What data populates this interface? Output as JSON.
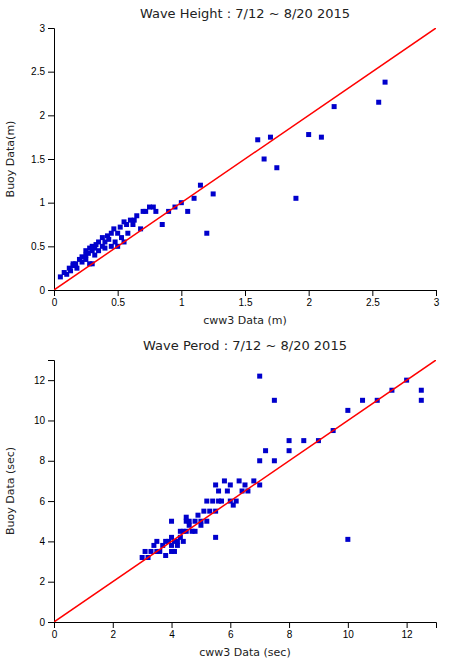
{
  "chart_data": [
    {
      "type": "scatter",
      "title": "Wave Height : 7/12 ~ 8/20 2015",
      "x_label": "cww3 Data (m)",
      "y_label": "Buoy Data(m)",
      "xlim": [
        0,
        3
      ],
      "ylim": [
        0,
        3
      ],
      "xticks": [
        0,
        0.5,
        1,
        1.5,
        2,
        2.5,
        3
      ],
      "yticks": [
        0,
        0.5,
        1,
        1.5,
        2,
        2.5,
        3
      ],
      "grid": false,
      "series": [
        {
          "type": "scatter",
          "color": "#0000CC",
          "marker": "square",
          "x": [
            0.05,
            0.08,
            0.1,
            0.12,
            0.13,
            0.15,
            0.15,
            0.17,
            0.18,
            0.2,
            0.22,
            0.22,
            0.25,
            0.25,
            0.25,
            0.27,
            0.28,
            0.28,
            0.3,
            0.3,
            0.3,
            0.32,
            0.32,
            0.33,
            0.35,
            0.35,
            0.38,
            0.38,
            0.4,
            0.4,
            0.42,
            0.43,
            0.45,
            0.45,
            0.47,
            0.48,
            0.5,
            0.5,
            0.52,
            0.53,
            0.55,
            0.55,
            0.57,
            0.58,
            0.6,
            0.62,
            0.63,
            0.65,
            0.68,
            0.7,
            0.72,
            0.75,
            0.78,
            0.8,
            0.85,
            0.9,
            0.95,
            1.0,
            1.05,
            1.1,
            1.15,
            1.2,
            1.25,
            1.6,
            1.65,
            1.7,
            1.75,
            1.9,
            2.0,
            2.1,
            2.2,
            2.55,
            2.6
          ],
          "values": [
            0.15,
            0.2,
            0.18,
            0.25,
            0.22,
            0.28,
            0.3,
            0.3,
            0.25,
            0.35,
            0.38,
            0.32,
            0.4,
            0.45,
            0.35,
            0.42,
            0.48,
            0.3,
            0.45,
            0.5,
            0.3,
            0.48,
            0.4,
            0.52,
            0.45,
            0.55,
            0.5,
            0.6,
            0.55,
            0.48,
            0.62,
            0.58,
            0.65,
            0.5,
            0.7,
            0.55,
            0.65,
            0.5,
            0.72,
            0.6,
            0.78,
            0.55,
            0.75,
            0.65,
            0.8,
            0.75,
            0.8,
            0.85,
            0.7,
            0.9,
            0.9,
            0.95,
            0.95,
            0.9,
            0.75,
            0.9,
            0.95,
            1.0,
            0.9,
            1.05,
            1.2,
            0.65,
            1.1,
            1.72,
            1.5,
            1.75,
            1.4,
            1.05,
            1.78,
            1.75,
            2.1,
            2.15,
            2.38
          ]
        },
        {
          "type": "line",
          "color": "#FF0000",
          "line_style": "solid",
          "x": [
            0,
            3
          ],
          "values": [
            0,
            3
          ]
        }
      ]
    },
    {
      "type": "scatter",
      "title": "Wave Perod : 7/12 ~ 8/20 2015",
      "x_label": "cww3 Data (sec)",
      "y_label": "Buoy Data (sec)",
      "xlim": [
        0,
        13
      ],
      "ylim": [
        0,
        13
      ],
      "xticks": [
        0,
        2,
        4,
        6,
        8,
        10,
        12
      ],
      "yticks": [
        0,
        2,
        4,
        6,
        8,
        10,
        12
      ],
      "grid": false,
      "series": [
        {
          "type": "scatter",
          "color": "#0000CC",
          "marker": "square",
          "x": [
            3.0,
            3.1,
            3.2,
            3.3,
            3.4,
            3.5,
            3.5,
            3.6,
            3.7,
            3.8,
            3.8,
            3.9,
            4.0,
            4.0,
            4.0,
            4.1,
            4.1,
            4.2,
            4.2,
            4.3,
            4.3,
            4.4,
            4.4,
            4.5,
            4.5,
            4.5,
            4.6,
            4.6,
            4.7,
            4.8,
            4.8,
            4.9,
            5.0,
            5.0,
            5.1,
            5.2,
            5.2,
            5.3,
            5.4,
            5.5,
            5.5,
            5.6,
            5.6,
            5.7,
            5.8,
            5.9,
            6.0,
            6.0,
            6.1,
            6.2,
            6.3,
            6.4,
            6.5,
            6.6,
            6.8,
            7.0,
            7.0,
            7.2,
            7.5,
            8.0,
            8.0,
            9.0,
            9.5,
            10.0,
            10.5,
            11.0,
            11.5,
            12.0,
            12.5,
            12.5,
            4.0,
            5.5,
            7.0,
            7.5,
            8.5,
            10.0
          ],
          "values": [
            3.2,
            3.5,
            3.2,
            3.5,
            3.8,
            3.5,
            4.0,
            3.5,
            3.8,
            4.0,
            3.3,
            4.0,
            3.8,
            4.2,
            3.5,
            4.0,
            3.5,
            3.8,
            4.0,
            4.2,
            4.5,
            4.0,
            4.5,
            5.0,
            4.5,
            5.2,
            5.0,
            4.8,
            4.5,
            5.0,
            4.5,
            5.3,
            5.0,
            4.8,
            5.5,
            5.0,
            6.0,
            5.5,
            6.0,
            5.5,
            6.8,
            6.0,
            6.5,
            6.0,
            7.0,
            6.5,
            6.8,
            6.0,
            5.8,
            6.0,
            7.0,
            6.5,
            6.8,
            6.5,
            7.0,
            6.8,
            8.0,
            8.5,
            8.0,
            8.5,
            9.0,
            9.0,
            9.5,
            10.5,
            11.0,
            11.0,
            11.5,
            12.0,
            11.0,
            11.5,
            5.0,
            4.2,
            12.2,
            11.0,
            9.0,
            4.1
          ]
        },
        {
          "type": "line",
          "color": "#FF0000",
          "line_style": "solid",
          "x": [
            0,
            13
          ],
          "values": [
            0,
            13
          ]
        }
      ]
    }
  ]
}
